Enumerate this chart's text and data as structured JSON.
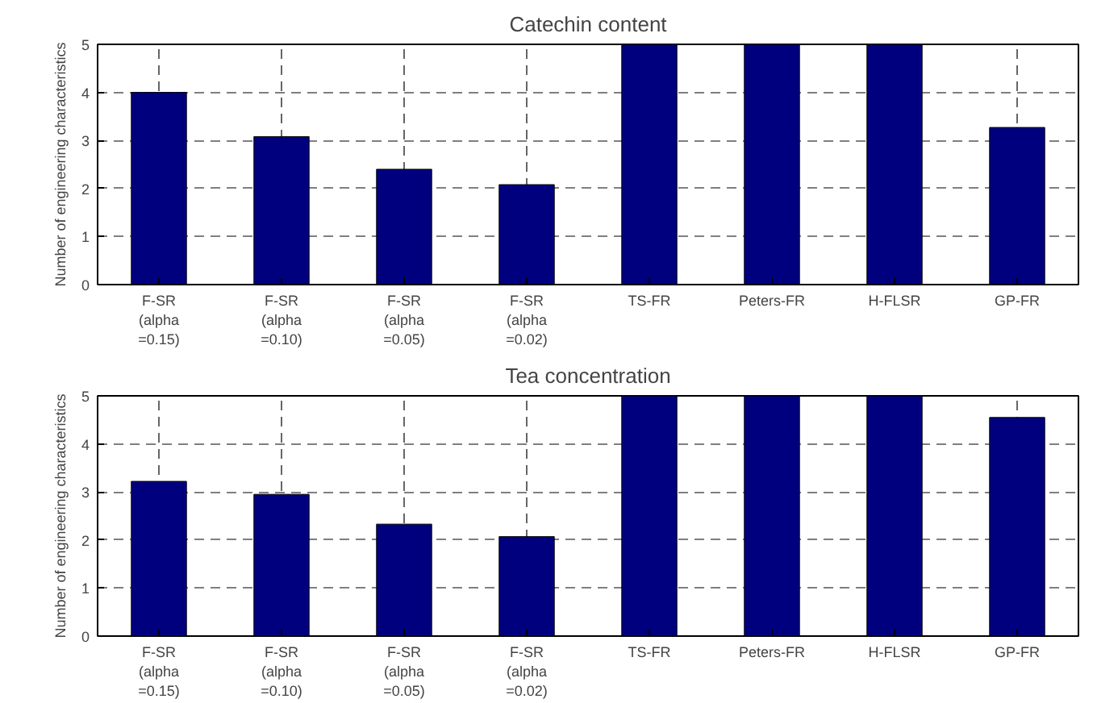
{
  "chart_data": [
    {
      "type": "bar",
      "title": "Catechin content",
      "ylabel": "Number of engineering characteristics",
      "categories": [
        "F-SR\n(alpha\n=0.15)",
        "F-SR\n(alpha\n=0.10)",
        "F-SR\n(alpha\n=0.05)",
        "F-SR\n(alpha\n=0.02)",
        "TS-FR",
        "Peters-FR",
        "H-FLSR",
        "GP-FR"
      ],
      "values": [
        4.0,
        3.08,
        2.4,
        2.08,
        5,
        5,
        5,
        3.27
      ],
      "color": "#00007f",
      "ylim": [
        0,
        5
      ],
      "yticks": [
        0,
        1,
        2,
        3,
        4,
        5
      ],
      "grid": true
    },
    {
      "type": "bar",
      "title": "Tea concentration",
      "ylabel": "Number of engineering characteristics",
      "categories": [
        "F-SR\n(alpha\n=0.15)",
        "F-SR\n(alpha\n=0.10)",
        "F-SR\n(alpha\n=0.05)",
        "F-SR\n(alpha\n=0.02)",
        "TS-FR",
        "Peters-FR",
        "H-FLSR",
        "GP-FR"
      ],
      "values": [
        3.22,
        2.95,
        2.33,
        2.07,
        5,
        5,
        5,
        4.55
      ],
      "color": "#00007f",
      "ylim": [
        0,
        5
      ],
      "yticks": [
        0,
        1,
        2,
        3,
        4,
        5
      ],
      "grid": true
    }
  ]
}
